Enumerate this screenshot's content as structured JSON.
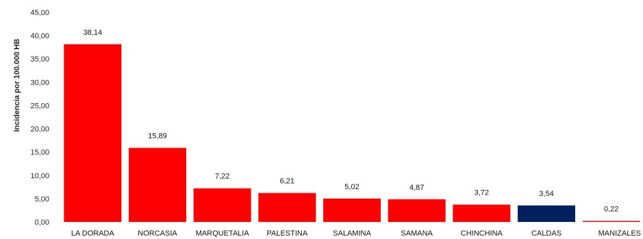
{
  "chart_data": {
    "type": "bar",
    "title": "",
    "xlabel": "",
    "ylabel": "Incidencia por 100.000 HB",
    "ylim": [
      0,
      45
    ],
    "yticks": [
      "0,00",
      "5,00",
      "10,00",
      "15,00",
      "20,00",
      "25,00",
      "30,00",
      "35,00",
      "40,00",
      "45,00"
    ],
    "grid": false,
    "legend": "none",
    "categories": [
      "LA DORADA",
      "NORCASIA",
      "MARQUETALIA",
      "PALESTINA",
      "SALAMINA",
      "SAMANA",
      "CHINCHINA",
      "CALDAS",
      "MANIZALES"
    ],
    "values": [
      38.14,
      15.89,
      7.22,
      6.21,
      5.02,
      4.87,
      3.72,
      3.54,
      0.22
    ],
    "value_labels": [
      "38,14",
      "15,89",
      "7,22",
      "6,21",
      "5,02",
      "4,87",
      "3,72",
      "3,54",
      "0,22"
    ],
    "colors": [
      "#ff0000",
      "#ff0000",
      "#ff0000",
      "#ff0000",
      "#ff0000",
      "#ff0000",
      "#ff0000",
      "#002060",
      "#ff0000"
    ]
  }
}
